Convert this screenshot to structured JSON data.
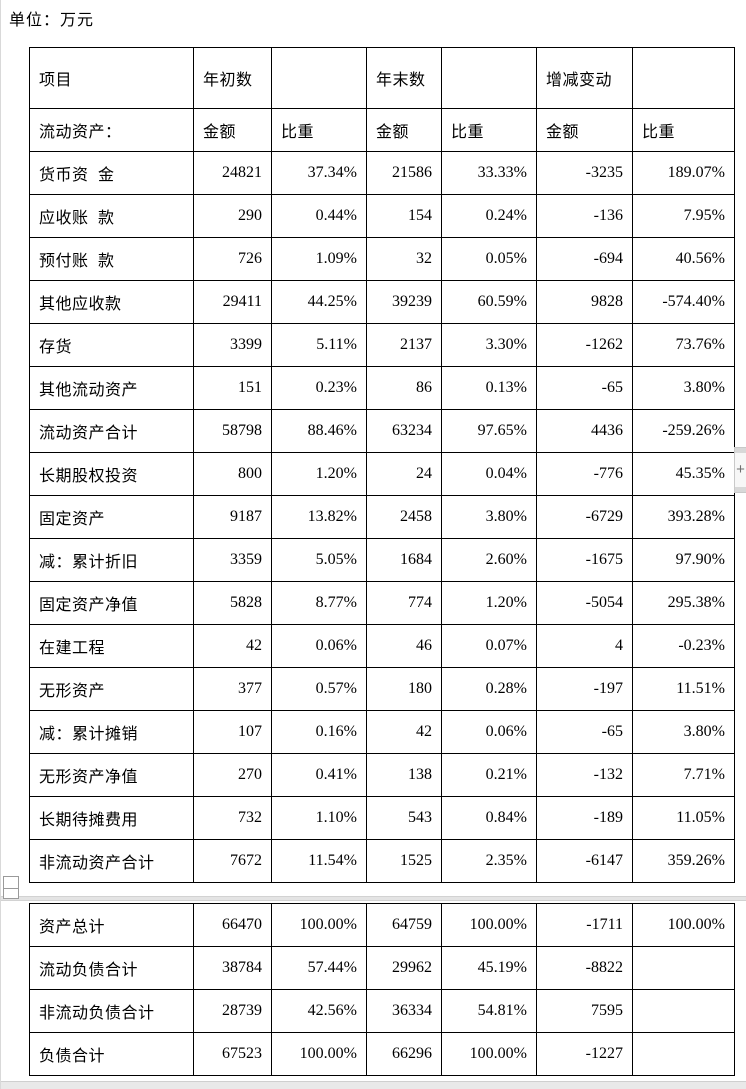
{
  "page": {
    "unit_label": "单位：万元"
  },
  "widgets": {
    "expand_button_label": "+"
  },
  "table": {
    "header1": [
      "项目",
      "年初数",
      "",
      "年末数",
      "",
      "增减变动",
      ""
    ],
    "header2": [
      "流动资产：",
      "金额",
      "比重",
      "金额",
      "比重",
      "金额",
      "比重"
    ],
    "sections": [
      {
        "rows": [
          {
            "cells": [
              "货币资 金",
              "24821",
              "37.34%",
              "21586",
              "33.33%",
              "-3235",
              "189.07%"
            ]
          },
          {
            "cells": [
              "应收账 款",
              "290",
              "0.44%",
              "154",
              "0.24%",
              "-136",
              "7.95%"
            ]
          },
          {
            "cells": [
              "预付账 款",
              "726",
              "1.09%",
              "32",
              "0.05%",
              "-694",
              "40.56%"
            ]
          },
          {
            "cells": [
              "其他应收款",
              "29411",
              "44.25%",
              "39239",
              "60.59%",
              "9828",
              "-574.40%"
            ]
          },
          {
            "cells": [
              "存货",
              "3399",
              "5.11%",
              "2137",
              "3.30%",
              "-1262",
              "73.76%"
            ]
          },
          {
            "cells": [
              "其他流动资产",
              "151",
              "0.23%",
              "86",
              "0.13%",
              "-65",
              "3.80%"
            ]
          },
          {
            "cells": [
              "流动资产合计",
              "58798",
              "88.46%",
              "63234",
              "97.65%",
              "4436",
              "-259.26%"
            ]
          },
          {
            "cells": [
              "长期股权投资",
              "800",
              "1.20%",
              "24",
              "0.04%",
              "-776",
              "45.35%"
            ]
          },
          {
            "cells": [
              "固定资产",
              "9187",
              "13.82%",
              "2458",
              "3.80%",
              "-6729",
              "393.28%"
            ]
          },
          {
            "cells": [
              "减：累计折旧",
              "3359",
              "5.05%",
              "1684",
              "2.60%",
              "-1675",
              "97.90%"
            ]
          },
          {
            "cells": [
              "固定资产净值",
              "5828",
              "8.77%",
              "774",
              "1.20%",
              "-5054",
              "295.38%"
            ]
          },
          {
            "cells": [
              "在建工程",
              "42",
              "0.06%",
              "46",
              "0.07%",
              "4",
              "-0.23%"
            ]
          },
          {
            "cells": [
              "无形资产",
              "377",
              "0.57%",
              "180",
              "0.28%",
              "-197",
              "11.51%"
            ]
          },
          {
            "cells": [
              "减：累计摊销",
              "107",
              "0.16%",
              "42",
              "0.06%",
              "-65",
              "3.80%"
            ]
          },
          {
            "cells": [
              "无形资产净值",
              "270",
              "0.41%",
              "138",
              "0.21%",
              "-132",
              "7.71%"
            ]
          },
          {
            "cells": [
              "长期待摊费用",
              "732",
              "1.10%",
              "543",
              "0.84%",
              "-189",
              "11.05%"
            ]
          },
          {
            "cells": [
              "非流动资产合计",
              "7672",
              "11.54%",
              "1525",
              "2.35%",
              "-6147",
              "359.26%"
            ]
          }
        ]
      },
      {
        "rows": [
          {
            "cells": [
              "资产总计",
              "66470",
              "100.00%",
              "64759",
              "100.00%",
              "-1711",
              "100.00%"
            ]
          },
          {
            "cells": [
              "流动负债合计",
              "38784",
              "57.44%",
              "29962",
              "45.19%",
              "-8822",
              ""
            ]
          },
          {
            "cells": [
              "非流动负债合计",
              "28739",
              "42.56%",
              "36334",
              "54.81%",
              "7595",
              ""
            ]
          },
          {
            "cells": [
              "负债合计",
              "67523",
              "100.00%",
              "66296",
              "100.00%",
              "-1227",
              ""
            ]
          }
        ]
      }
    ]
  }
}
